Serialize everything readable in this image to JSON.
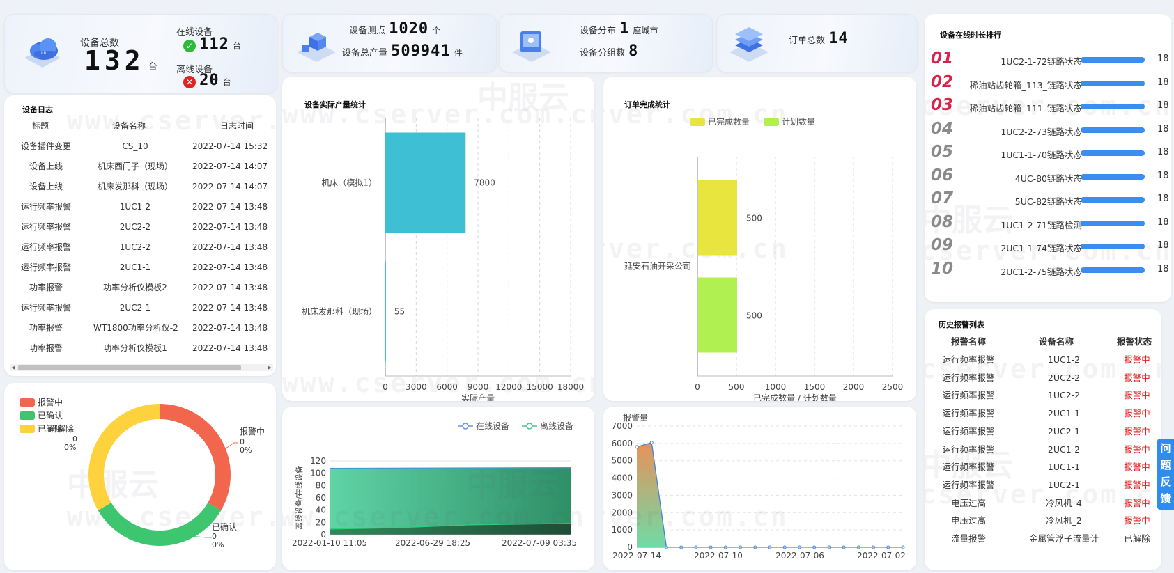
{
  "stats": {
    "total_label": "设备总数",
    "total_value": "132",
    "total_unit": "台",
    "online_label": "在线设备",
    "online_value": "112",
    "online_unit": "台",
    "offline_label": "离线设备",
    "offline_value": "20",
    "offline_unit": "台",
    "points_label": "设备测点",
    "points_value": "1020",
    "points_unit": "个",
    "output_label": "设备总产量",
    "output_value": "509941",
    "output_unit": "件",
    "dist_label": "设备分布",
    "dist_value": "1",
    "dist_unit": "座城市",
    "groups_label": "设备分组数",
    "groups_value": "8",
    "orders_label": "订单总数",
    "orders_value": "14"
  },
  "watermark": {
    "url": "www.cserver.com.cn",
    "brand": "中服云"
  },
  "log": {
    "title": "设备日志",
    "columns": [
      "标题",
      "设备名称",
      "日志时间"
    ],
    "rows": [
      [
        "设备插件变更",
        "CS_10",
        "2022-07-14 15:32"
      ],
      [
        "设备上线",
        "机床西门子（现场）",
        "2022-07-14 14:07"
      ],
      [
        "设备上线",
        "机床发那科（现场）",
        "2022-07-14 14:07"
      ],
      [
        "运行频率报警",
        "1UC1-2",
        "2022-07-14 13:48"
      ],
      [
        "运行频率报警",
        "2UC2-2",
        "2022-07-14 13:48"
      ],
      [
        "运行频率报警",
        "1UC2-2",
        "2022-07-14 13:48"
      ],
      [
        "运行频率报警",
        "2UC1-1",
        "2022-07-14 13:48"
      ],
      [
        "功率报警",
        "功率分析仪模板2",
        "2022-07-14 13:48"
      ],
      [
        "运行频率报警",
        "2UC2-1",
        "2022-07-14 13:48"
      ],
      [
        "功率报警",
        "WT1800功率分析仪-2",
        "2022-07-14 13:48"
      ],
      [
        "功率报警",
        "功率分析仪模板1",
        "2022-07-14 13:48"
      ]
    ]
  },
  "donut": {
    "legend": [
      "报警中",
      "已确认",
      "已解除"
    ],
    "colors": [
      "#f2664e",
      "#3dc56f",
      "#fdd23c"
    ],
    "label_alarm": {
      "name": "报警中",
      "count": "0",
      "pct": "0%"
    },
    "label_confirmed": {
      "name": "已确认",
      "count": "0",
      "pct": "0%"
    },
    "label_resolved": {
      "name": "已解除",
      "count": "0",
      "pct": "0%"
    }
  },
  "production": {
    "title": "设备实际产量统计",
    "chart_data": {
      "type": "bar",
      "orientation": "horizontal",
      "categories": [
        "机床（模拟1）",
        "机床发那科（现场）"
      ],
      "values": [
        7800,
        55
      ],
      "xlabel": "实际产量",
      "xlim": [
        0,
        18000
      ],
      "xticks": [
        "0",
        "3000",
        "6000",
        "9000",
        "12000",
        "15000",
        "18000"
      ],
      "color": "#3fbfd3"
    }
  },
  "orders": {
    "title": "订单完成统计",
    "chart_data": {
      "type": "bar",
      "orientation": "horizontal",
      "categories": [
        "延安石油开采公司"
      ],
      "series": [
        {
          "name": "已完成数量",
          "values": [
            500
          ],
          "color": "#e8e63e"
        },
        {
          "name": "计划数量",
          "values": [
            500
          ],
          "color": "#b0f050"
        }
      ],
      "xlabel": "已完成数量 / 计划数量",
      "xlim": [
        0,
        2500
      ],
      "xticks": [
        "0",
        "500",
        "1000",
        "1500",
        "2000",
        "2500"
      ],
      "data_labels": [
        "500",
        "500"
      ]
    }
  },
  "online": {
    "chart_data": {
      "type": "area",
      "legend": [
        "在线设备",
        "离线设备"
      ],
      "ylabel": "离线设备/在线设备",
      "ylim": [
        0,
        120
      ],
      "yticks": [
        "0",
        "20",
        "40",
        "60",
        "80",
        "100",
        "120"
      ],
      "xticks": [
        "2022-01-10 11:05",
        "2022-06-29 18:25",
        "2022-07-09 03:35"
      ],
      "online_level": 108,
      "offline_level": 16
    }
  },
  "alarmqty": {
    "chart_data": {
      "type": "area",
      "ylabel": "报警量",
      "ylim": [
        0,
        7000
      ],
      "yticks": [
        "0",
        "1000",
        "2000",
        "3000",
        "4000",
        "5000",
        "6000",
        "7000"
      ],
      "xticks": [
        "2022-07-14",
        "2022-07-10",
        "2022-07-06",
        "2022-07-02"
      ],
      "points": [
        5800,
        6050,
        0,
        0,
        0,
        0,
        0,
        0,
        0,
        0,
        0,
        0,
        0,
        0,
        0,
        0,
        0,
        0,
        0
      ]
    }
  },
  "ranking": {
    "title": "设备在线时长排行",
    "value_label": "18",
    "items": [
      {
        "rank": "01",
        "name": "1UC2-1-72链路状态"
      },
      {
        "rank": "02",
        "name": "稀油站齿轮箱_113_链路状态"
      },
      {
        "rank": "03",
        "name": "稀油站齿轮箱_111_链路状态"
      },
      {
        "rank": "04",
        "name": "1UC2-2-73链路状态"
      },
      {
        "rank": "05",
        "name": "1UC1-1-70链路状态"
      },
      {
        "rank": "06",
        "name": "4UC-80链路状态"
      },
      {
        "rank": "07",
        "name": "5UC-82链路状态"
      },
      {
        "rank": "08",
        "name": "1UC1-2-71链路检测"
      },
      {
        "rank": "09",
        "name": "2UC1-1-74链路状态"
      },
      {
        "rank": "10",
        "name": "2UC1-2-75链路状态"
      }
    ],
    "colors": {
      "top": "#d9234b",
      "rest": "#8a8a8a",
      "bar": "#3b8ef0"
    }
  },
  "history": {
    "title": "历史报警列表",
    "columns": [
      "报警名称",
      "设备名称",
      "报警状态"
    ],
    "rows": [
      [
        "运行频率报警",
        "1UC1-2",
        "报警中"
      ],
      [
        "运行频率报警",
        "2UC2-2",
        "报警中"
      ],
      [
        "运行频率报警",
        "1UC2-2",
        "报警中"
      ],
      [
        "运行频率报警",
        "2UC1-1",
        "报警中"
      ],
      [
        "运行频率报警",
        "2UC2-1",
        "报警中"
      ],
      [
        "运行频率报警",
        "2UC1-2",
        "报警中"
      ],
      [
        "运行频率报警",
        "1UC1-1",
        "报警中"
      ],
      [
        "运行频率报警",
        "1UC2-1",
        "报警中"
      ],
      [
        "电压过高",
        "冷风机_4",
        "报警中"
      ],
      [
        "电压过高",
        "冷风机_2",
        "报警中"
      ],
      [
        "流量报警",
        "金属管浮子流量计",
        "已解除"
      ]
    ],
    "alarm_color": "#e02020"
  },
  "feedback": {
    "label": "问题反馈"
  }
}
